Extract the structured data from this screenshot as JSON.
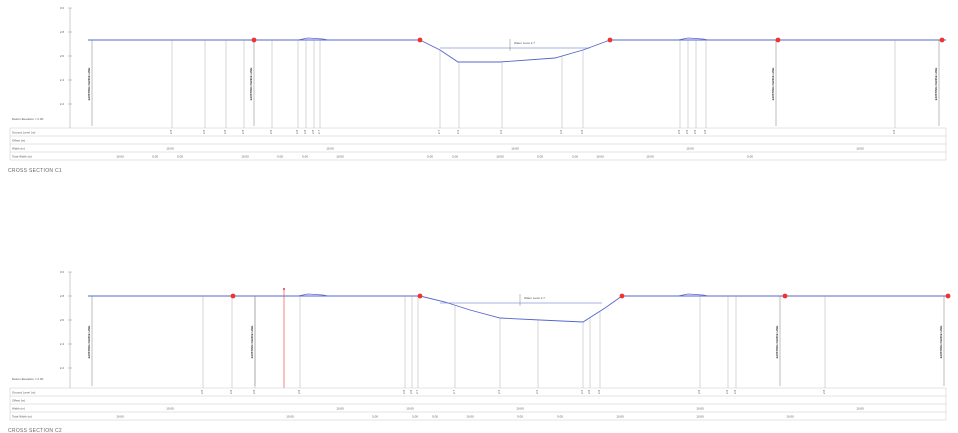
{
  "sections": [
    {
      "id": "section-1",
      "caption": "CROSS SECTION C1",
      "y_ticks": [
        "3.0",
        "2.8",
        "2.6",
        "2.4",
        "2.2"
      ],
      "datum_label": "Datum Elevation = 2.00",
      "row_labels": [
        "Ground Level (m)",
        "Offset (m)",
        "Width (m)",
        "Total Width (m)"
      ],
      "walls": [
        "EXISTING FENCE LINE",
        "EXISTING FENCE LINE",
        "EXISTING FENCE LINE",
        "EXISTING FENCE LINE"
      ],
      "water_label": "Water Level 2.7",
      "width_labels": [
        "10.00",
        "10.00",
        "10.00",
        "10.00",
        "10.00"
      ],
      "total_labels": [
        "10.00",
        "5.00",
        "5.00",
        "10.00",
        "5.00",
        "5.00",
        "10.00",
        "5.00",
        "5.00",
        "10.00",
        "5.00",
        "5.00",
        "10.00",
        "10.00",
        "5.00"
      ],
      "ground_values": [
        "2.8",
        "2.8",
        "2.8",
        "2.8",
        "2.8",
        "2.8",
        "2.8",
        "2.8",
        "2.7",
        "2.7",
        "2.6",
        "2.6",
        "2.6",
        "2.8",
        "2.8",
        "2.8",
        "2.8",
        "2.8",
        "2.8",
        "2.8",
        "2.8"
      ]
    },
    {
      "id": "section-2",
      "caption": "CROSS SECTION C2",
      "y_ticks": [
        "3.0",
        "2.8",
        "2.6",
        "2.4",
        "2.2"
      ],
      "datum_label": "Datum Elevation = 2.00",
      "row_labels": [
        "Ground Level (m)",
        "Offset (m)",
        "Width (m)",
        "Total Width (m)"
      ],
      "walls": [
        "EXISTING FENCE LINE",
        "EXISTING FENCE LINE",
        "EXISTING FENCE LINE",
        "EXISTING FENCE LINE"
      ],
      "water_label": "Water Level 2.7",
      "width_labels": [
        "10.00",
        "10.00",
        "10.00",
        "10.00",
        "10.00",
        "10.00"
      ],
      "total_labels": [
        "10.00",
        "10.00",
        "5.00",
        "5.00",
        "5.00",
        "10.00",
        "5.00",
        "5.00",
        "10.00",
        "10.00",
        "10.00"
      ],
      "ground_values": [
        "2.8",
        "2.8",
        "2.8",
        "2.8",
        "2.8",
        "2.8",
        "2.7",
        "2.7",
        "2.6",
        "2.6",
        "2.6",
        "2.8",
        "2.8",
        "2.8",
        "2.8",
        "2.8",
        "2.8"
      ]
    }
  ],
  "colors": {
    "profile": "#5566cc",
    "grid": "#c8c8c8",
    "marker": "#ee3333",
    "text": "#444444"
  }
}
